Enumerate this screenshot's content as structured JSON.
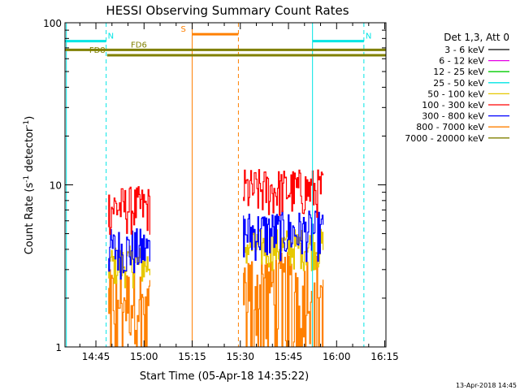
{
  "chart_data": {
    "type": "line",
    "title": "HESSI Observing Summary Count Rates",
    "xlabel": "Start Time (05-Apr-18 14:35:22)",
    "ylabel": "Count Rate (s⁻¹ detector⁻¹)",
    "ylabel_parts": {
      "base": "Count Rate (s",
      "exp1": "-1",
      "mid": " detector",
      "exp2": "-1",
      "end": ")"
    },
    "yscale": "log",
    "ylim": [
      1,
      100
    ],
    "xlim_minutes": [
      35.37,
      135.37
    ],
    "x_ticks": [
      {
        "label": "14:45",
        "min": 45
      },
      {
        "label": "15:00",
        "min": 60
      },
      {
        "label": "15:15",
        "min": 75
      },
      {
        "label": "15:30",
        "min": 90
      },
      {
        "label": "15:45",
        "min": 105
      },
      {
        "label": "16:00",
        "min": 120
      },
      {
        "label": "16:15",
        "min": 135
      }
    ],
    "y_ticks": [
      {
        "label": "1",
        "value": 1
      },
      {
        "label": "10",
        "value": 10
      },
      {
        "label": "100",
        "value": 100
      }
    ],
    "legend_title": "Det 1,3, Att 0",
    "legend_placement": "right",
    "series": [
      {
        "name": "3 - 6 keV",
        "color": "#000000",
        "level": 1.0
      },
      {
        "name": "6 - 12 keV",
        "color": "#e600e6",
        "level": 1.0
      },
      {
        "name": "12 - 25 keV",
        "color": "#00cc00",
        "level": 1.0
      },
      {
        "name": "25 - 50 keV",
        "color": "#00e5e5",
        "level": 1.0
      },
      {
        "name": "50 - 100 keV",
        "color": "#e6c800",
        "level": 3.2
      },
      {
        "name": "100 - 300 keV",
        "color": "#ff0000",
        "level": 7.0
      },
      {
        "name": "300 - 800 keV",
        "color": "#0000ff",
        "level": 4.3
      },
      {
        "name": "800 - 7000 keV",
        "color": "#ff8000",
        "level": 2.5
      },
      {
        "name": "7000 - 20000 keV",
        "color": "#808000",
        "level": 1.0
      }
    ],
    "data_segments": [
      {
        "start_min": 49.0,
        "end_min": 62.0
      },
      {
        "start_min": 91.0,
        "end_min": 116.0
      }
    ],
    "flags": [
      {
        "label": "N",
        "color": "#00e5e5",
        "value": 77,
        "start_min": 35.37,
        "end_min": 48.2,
        "segment": 1
      },
      {
        "label": "N",
        "color": "#00e5e5",
        "value": 77,
        "start_min": 112.5,
        "end_min": 128.5,
        "segment": 2
      },
      {
        "label": "S",
        "color": "#ff8000",
        "value": 85,
        "start_min": 75.0,
        "end_min": 89.4,
        "segment": 1
      },
      {
        "label": "FD6",
        "color": "#808000",
        "value": 68,
        "start_min": 35.37,
        "end_min": 135.37,
        "segment": 1
      },
      {
        "label": "FD8",
        "color": "#808000",
        "value": 63,
        "start_min": 48.5,
        "end_min": 135.37,
        "segment": 1
      }
    ],
    "markers": [
      {
        "min": 48.2,
        "color": "#00e5e5",
        "style": "dashed"
      },
      {
        "min": 112.5,
        "color": "#00e5e5",
        "style": "solid"
      },
      {
        "min": 128.5,
        "color": "#00e5e5",
        "style": "dashed"
      },
      {
        "min": 35.8,
        "color": "#00e5e5",
        "style": "solid"
      },
      {
        "min": 75.0,
        "color": "#ff8000",
        "style": "solid"
      },
      {
        "min": 89.4,
        "color": "#ff8000",
        "style": "dashed"
      }
    ]
  },
  "footer": {
    "date_stamp": "13-Apr-2018 14:45"
  }
}
